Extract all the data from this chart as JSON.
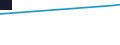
{
  "x": [
    0,
    1,
    2,
    3,
    4,
    5,
    6,
    7,
    8,
    9,
    10,
    11,
    12,
    13,
    14,
    15,
    16,
    17,
    18,
    19,
    20,
    21,
    22,
    23,
    24,
    25,
    26,
    27,
    28,
    29
  ],
  "y": [
    10.0,
    10.1,
    10.2,
    10.3,
    10.4,
    10.5,
    10.6,
    10.7,
    10.8,
    10.9,
    11.0,
    11.1,
    11.2,
    11.3,
    11.4,
    11.5,
    11.6,
    11.7,
    11.8,
    11.9,
    12.0,
    12.1,
    12.2,
    12.3,
    12.4,
    12.5,
    12.6,
    12.7,
    12.85,
    13.0
  ],
  "line_color": "#2196c8",
  "background_color": "#ffffff",
  "legend_box_color": "#1a1a2e",
  "ylim": [
    0,
    14.5
  ],
  "xlim": [
    0,
    29
  ],
  "linewidth": 1.2
}
